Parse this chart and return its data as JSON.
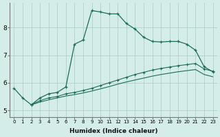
{
  "xlabel": "Humidex (Indice chaleur)",
  "background_color": "#d5ede8",
  "grid_color": "#afd0c8",
  "line_color": "#1a6b5a",
  "xlim": [
    -0.5,
    23.5
  ],
  "ylim": [
    4.75,
    8.9
  ],
  "xtick_labels": [
    "0",
    "1",
    "2",
    "3",
    "4",
    "5",
    "6",
    "7",
    "8",
    "9",
    "10",
    "11",
    "12",
    "13",
    "14",
    "15",
    "16",
    "17",
    "18",
    "19",
    "20",
    "21",
    "22",
    "23"
  ],
  "yticks": [
    5,
    6,
    7,
    8
  ],
  "series1_x": [
    0,
    1,
    2,
    3,
    4,
    5,
    6,
    7,
    8,
    9,
    10,
    11,
    12,
    13,
    14,
    15,
    16,
    17,
    18,
    19,
    20,
    21,
    22,
    23
  ],
  "series1_y": [
    5.8,
    5.45,
    5.2,
    5.45,
    5.6,
    5.65,
    5.85,
    7.4,
    7.55,
    8.62,
    8.57,
    8.5,
    8.5,
    8.15,
    7.95,
    7.65,
    7.5,
    7.48,
    7.5,
    7.5,
    7.4,
    7.18,
    6.58,
    6.4
  ],
  "series2_x": [
    2,
    3,
    4,
    5,
    6,
    7,
    8,
    9,
    10,
    11,
    12,
    13,
    14,
    15,
    16,
    17,
    18,
    19,
    20,
    21,
    22,
    23
  ],
  "series2_y": [
    5.2,
    5.35,
    5.45,
    5.5,
    5.6,
    5.65,
    5.72,
    5.8,
    5.9,
    6.0,
    6.1,
    6.2,
    6.3,
    6.38,
    6.46,
    6.52,
    6.57,
    6.62,
    6.66,
    6.7,
    6.5,
    6.42
  ],
  "series3_x": [
    2,
    3,
    4,
    5,
    6,
    7,
    8,
    9,
    10,
    11,
    12,
    13,
    14,
    15,
    16,
    17,
    18,
    19,
    20,
    21,
    22,
    23
  ],
  "series3_y": [
    5.2,
    5.3,
    5.38,
    5.45,
    5.52,
    5.57,
    5.63,
    5.7,
    5.78,
    5.86,
    5.95,
    6.03,
    6.1,
    6.17,
    6.24,
    6.3,
    6.35,
    6.4,
    6.44,
    6.48,
    6.3,
    6.22
  ]
}
